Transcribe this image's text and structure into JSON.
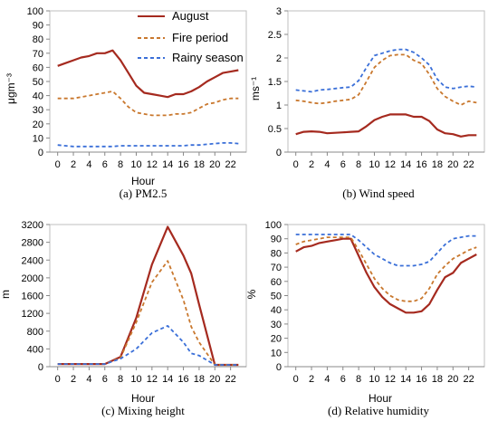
{
  "legend": [
    {
      "name": "August",
      "color": "#a52a1f",
      "dash": "solid"
    },
    {
      "name": "Fire period",
      "color": "#c9782e",
      "dash": "dashed"
    },
    {
      "name": "Rainy season",
      "color": "#3a6fd8",
      "dash": "dashed"
    }
  ],
  "chart_data": [
    {
      "type": "line",
      "caption": "(a) PM2.5",
      "xlabel": "Hour",
      "ylabel": "μgm⁻³",
      "x": [
        0,
        1,
        2,
        3,
        4,
        5,
        6,
        7,
        8,
        9,
        10,
        11,
        12,
        13,
        14,
        15,
        16,
        17,
        18,
        19,
        20,
        21,
        22,
        23
      ],
      "xticks": [
        0,
        2,
        4,
        6,
        8,
        10,
        12,
        14,
        16,
        18,
        20,
        22
      ],
      "yticks": [
        0,
        10,
        20,
        30,
        40,
        50,
        60,
        70,
        80,
        90,
        100
      ],
      "ylim": [
        0,
        100
      ],
      "series": [
        {
          "name": "August",
          "values": [
            61,
            63,
            65,
            67,
            68,
            70,
            70,
            72,
            65,
            56,
            47,
            42,
            41,
            40,
            39,
            41,
            41,
            43,
            46,
            50,
            53,
            56,
            57,
            58
          ]
        },
        {
          "name": "Fire period",
          "values": [
            38,
            38,
            38,
            39,
            40,
            41,
            42,
            43,
            38,
            32,
            28,
            27,
            26,
            26,
            26,
            27,
            27,
            28,
            31,
            34,
            35,
            37,
            38,
            38
          ]
        },
        {
          "name": "Rainy season",
          "values": [
            5,
            4.5,
            4,
            4,
            4,
            4,
            4,
            4,
            4.5,
            4.5,
            4.5,
            4.5,
            4.5,
            4.5,
            4.5,
            4.5,
            4.5,
            5,
            5,
            5.5,
            6,
            6.5,
            6.5,
            6
          ]
        }
      ]
    },
    {
      "type": "line",
      "caption": "(b) Wind speed",
      "xlabel": "",
      "ylabel": "ms⁻¹",
      "x": [
        0,
        1,
        2,
        3,
        4,
        5,
        6,
        7,
        8,
        9,
        10,
        11,
        12,
        13,
        14,
        15,
        16,
        17,
        18,
        19,
        20,
        21,
        22,
        23
      ],
      "xticks": [
        0,
        2,
        4,
        6,
        8,
        10,
        12,
        14,
        16,
        18,
        20,
        22
      ],
      "yticks": [
        0,
        0.5,
        1,
        1.5,
        2,
        2.5,
        3
      ],
      "ytick_labels": [
        "0",
        "0.5",
        "1",
        "1.5",
        "2",
        "2.5",
        "3"
      ],
      "ylim": [
        0,
        3
      ],
      "series": [
        {
          "name": "August",
          "values": [
            0.38,
            0.43,
            0.44,
            0.43,
            0.4,
            0.41,
            0.42,
            0.43,
            0.44,
            0.55,
            0.68,
            0.75,
            0.8,
            0.8,
            0.8,
            0.75,
            0.75,
            0.66,
            0.48,
            0.4,
            0.38,
            0.33,
            0.36,
            0.36
          ]
        },
        {
          "name": "Fire period",
          "values": [
            1.1,
            1.08,
            1.05,
            1.03,
            1.05,
            1.08,
            1.1,
            1.12,
            1.22,
            1.5,
            1.8,
            1.95,
            2.05,
            2.07,
            2.07,
            1.95,
            1.88,
            1.65,
            1.35,
            1.18,
            1.08,
            1.0,
            1.08,
            1.05
          ]
        },
        {
          "name": "Rainy season",
          "values": [
            1.32,
            1.3,
            1.28,
            1.32,
            1.33,
            1.35,
            1.37,
            1.38,
            1.52,
            1.8,
            2.05,
            2.1,
            2.15,
            2.18,
            2.18,
            2.12,
            2.0,
            1.85,
            1.55,
            1.38,
            1.35,
            1.38,
            1.4,
            1.38
          ]
        }
      ]
    },
    {
      "type": "line",
      "caption": "(c) Mixing height",
      "xlabel": "Hour",
      "ylabel": "m",
      "x": [
        0,
        2,
        4,
        6,
        8,
        10,
        12,
        14,
        16,
        17,
        18,
        20,
        22,
        23
      ],
      "xticks": [
        0,
        2,
        4,
        6,
        8,
        10,
        12,
        14,
        16,
        18,
        20,
        22
      ],
      "yticks": [
        0,
        400,
        800,
        1200,
        1600,
        2000,
        2400,
        2800,
        3200
      ],
      "ylim": [
        0,
        3200
      ],
      "series": [
        {
          "name": "August",
          "values": [
            60,
            60,
            60,
            60,
            220,
            1100,
            2300,
            3150,
            2500,
            2100,
            1400,
            40,
            40,
            40
          ]
        },
        {
          "name": "Fire period",
          "values": [
            60,
            60,
            60,
            60,
            200,
            1000,
            1900,
            2380,
            1500,
            900,
            550,
            40,
            40,
            40
          ]
        },
        {
          "name": "Rainy season",
          "values": [
            60,
            60,
            60,
            60,
            180,
            400,
            760,
            920,
            550,
            300,
            250,
            40,
            40,
            40
          ]
        }
      ]
    },
    {
      "type": "line",
      "caption": "(d) Relative humidity",
      "xlabel": "Hour",
      "ylabel": "%",
      "x": [
        0,
        1,
        2,
        3,
        4,
        5,
        6,
        7,
        8,
        9,
        10,
        11,
        12,
        13,
        14,
        15,
        16,
        17,
        18,
        19,
        20,
        21,
        22,
        23
      ],
      "xticks": [
        0,
        2,
        4,
        6,
        8,
        10,
        12,
        14,
        16,
        18,
        20,
        22
      ],
      "yticks": [
        0,
        10,
        20,
        30,
        40,
        50,
        60,
        70,
        80,
        90,
        100
      ],
      "ylim": [
        0,
        100
      ],
      "series": [
        {
          "name": "August",
          "values": [
            81,
            84,
            85,
            87,
            88,
            89,
            90,
            90,
            78,
            66,
            56,
            49,
            44,
            41,
            38,
            38,
            39,
            44,
            54,
            63,
            66,
            73,
            76,
            79
          ]
        },
        {
          "name": "Fire period",
          "values": [
            86,
            88,
            89,
            90,
            91,
            91,
            91,
            91,
            82,
            72,
            62,
            55,
            50,
            47,
            46,
            46,
            48,
            55,
            65,
            71,
            76,
            79,
            82,
            84
          ]
        },
        {
          "name": "Rainy season",
          "values": [
            93,
            93,
            93,
            93,
            93,
            93,
            93,
            93,
            89,
            84,
            79,
            76,
            73,
            71,
            71,
            71,
            72,
            74,
            80,
            86,
            90,
            91,
            92,
            92
          ]
        }
      ]
    }
  ]
}
